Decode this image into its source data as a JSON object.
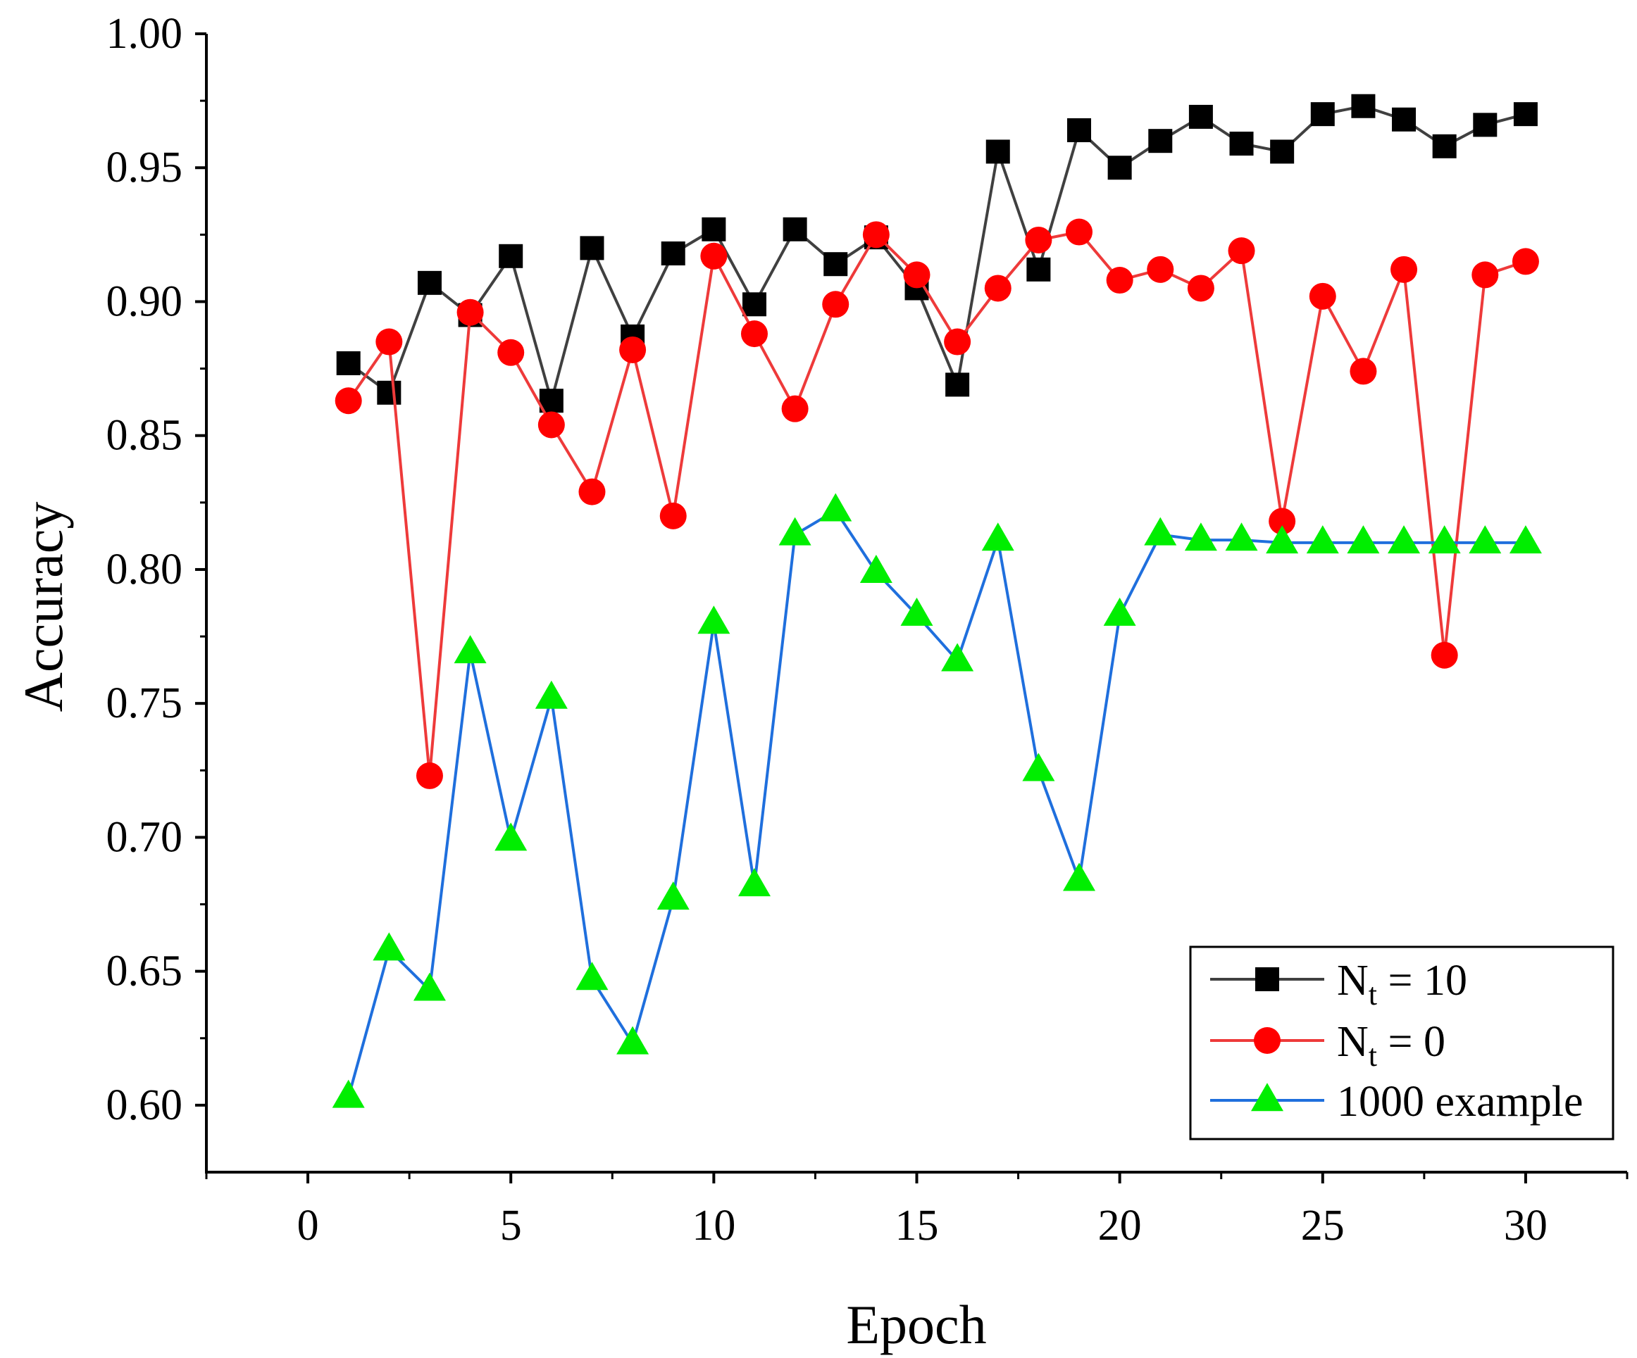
{
  "chart_data": {
    "type": "line",
    "title": "",
    "xlabel": "Epoch",
    "ylabel": "Accuracy",
    "xlim": [
      -2.5,
      32.5
    ],
    "ylim": [
      0.575,
      1.0
    ],
    "x_ticks": [
      0,
      5,
      10,
      15,
      20,
      25,
      30
    ],
    "x_tick_labels": [
      "0",
      "5",
      "10",
      "15",
      "20",
      "25",
      "30"
    ],
    "y_ticks": [
      0.6,
      0.65,
      0.7,
      0.75,
      0.8,
      0.85,
      0.9,
      0.95,
      1.0
    ],
    "y_tick_labels": [
      "0.60",
      "0.65",
      "0.70",
      "0.75",
      "0.80",
      "0.85",
      "0.90",
      "0.95",
      "1.00"
    ],
    "grid": false,
    "legend_position": "bottom-right",
    "x": [
      1,
      2,
      3,
      4,
      5,
      6,
      7,
      8,
      9,
      10,
      11,
      12,
      13,
      14,
      15,
      16,
      17,
      18,
      19,
      20,
      21,
      22,
      23,
      24,
      25,
      26,
      27,
      28,
      29,
      30
    ],
    "series": [
      {
        "name_main": "N",
        "name_sub": "t",
        "name_rest": " = 10",
        "color": "#404040",
        "marker": "square",
        "marker_color": "#000000",
        "values": [
          0.877,
          0.866,
          0.907,
          0.895,
          0.917,
          0.863,
          0.92,
          0.887,
          0.918,
          0.927,
          0.899,
          0.927,
          0.914,
          0.924,
          0.905,
          0.869,
          0.956,
          0.912,
          0.964,
          0.95,
          0.96,
          0.969,
          0.959,
          0.956,
          0.97,
          0.973,
          0.968,
          0.958,
          0.966,
          0.97
        ]
      },
      {
        "name_main": "N",
        "name_sub": "t",
        "name_rest": " = 0",
        "color": "#ee3a3a",
        "marker": "circle",
        "marker_color": "#ff0000",
        "values": [
          0.863,
          0.885,
          0.723,
          0.896,
          0.881,
          0.854,
          0.829,
          0.882,
          0.82,
          0.917,
          0.888,
          0.86,
          0.899,
          0.925,
          0.91,
          0.885,
          0.905,
          0.923,
          0.926,
          0.908,
          0.912,
          0.905,
          0.919,
          0.818,
          0.902,
          0.874,
          0.912,
          0.768,
          0.91,
          0.915
        ]
      },
      {
        "name_main": "1000 example",
        "name_sub": "",
        "name_rest": "",
        "color": "#1f6fdd",
        "marker": "triangle",
        "marker_color": "#00ee00",
        "values": [
          0.603,
          0.658,
          0.643,
          0.769,
          0.699,
          0.752,
          0.647,
          0.623,
          0.677,
          0.78,
          0.682,
          0.813,
          0.822,
          0.799,
          0.783,
          0.766,
          0.811,
          0.725,
          0.684,
          0.783,
          0.813,
          0.811,
          0.811,
          0.81,
          0.81,
          0.81,
          0.81,
          0.81,
          0.81,
          0.81
        ]
      }
    ]
  }
}
